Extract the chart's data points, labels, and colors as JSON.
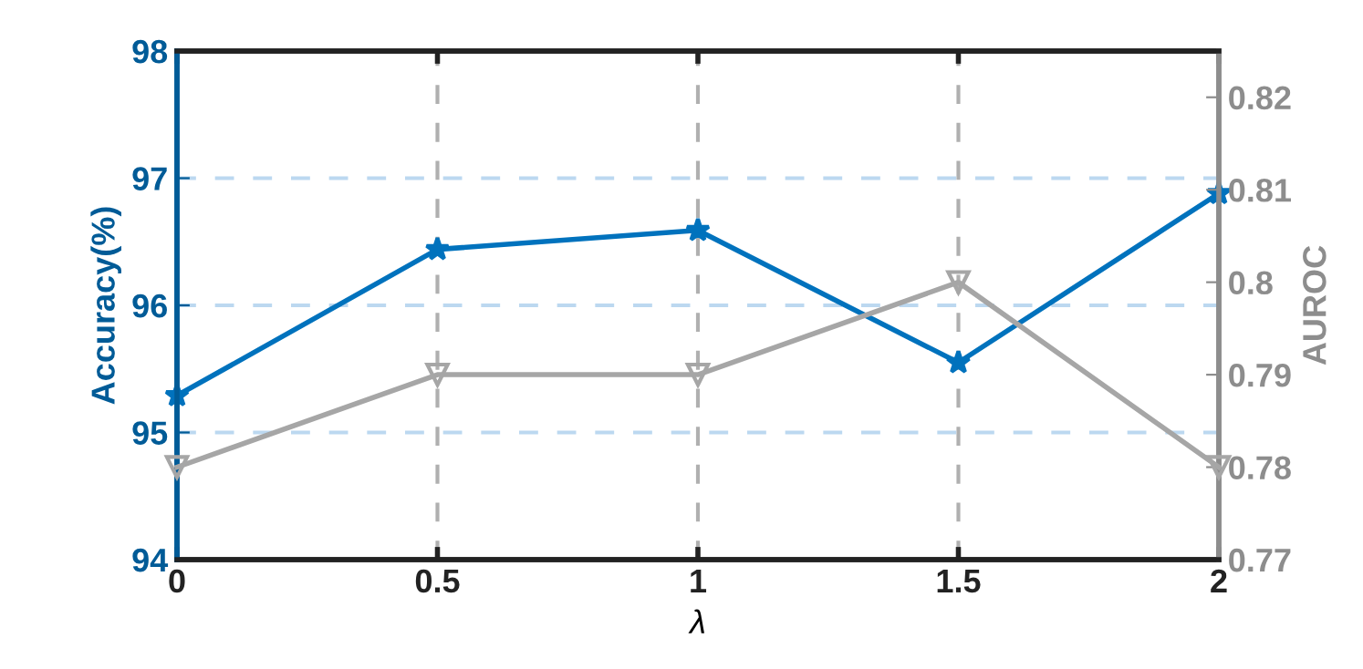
{
  "chart_data": {
    "type": "line",
    "xlabel": "λ",
    "ylabel": "Accuracy(%)",
    "y2label": "AUROC",
    "x": [
      0,
      0.5,
      1,
      1.5,
      2
    ],
    "series": [
      {
        "color": "#0072bd",
        "values": [
          95.29,
          96.44,
          96.59,
          95.55,
          96.88
        ],
        "marker": "star"
      },
      {
        "color": "#a6a6a6",
        "values": [
          0.78,
          0.79,
          0.79,
          0.8,
          0.78
        ],
        "marker": "triangle",
        "axis": "y2"
      }
    ],
    "xlim": [
      0,
      2
    ],
    "xticks": [
      0,
      {
        "value": 0.5,
        "label": "0.5"
      },
      1,
      {
        "value": 1.5,
        "label": "1.5"
      },
      2
    ],
    "ylim": [
      94,
      98
    ],
    "yticks": [
      94,
      95,
      96,
      97,
      98
    ],
    "y2lim": [
      0.77,
      0.825
    ],
    "y2ticks": [
      0.77,
      0.78,
      0.79,
      0.8,
      0.81,
      0.82
    ],
    "grid": true,
    "line_style": "solid"
  }
}
